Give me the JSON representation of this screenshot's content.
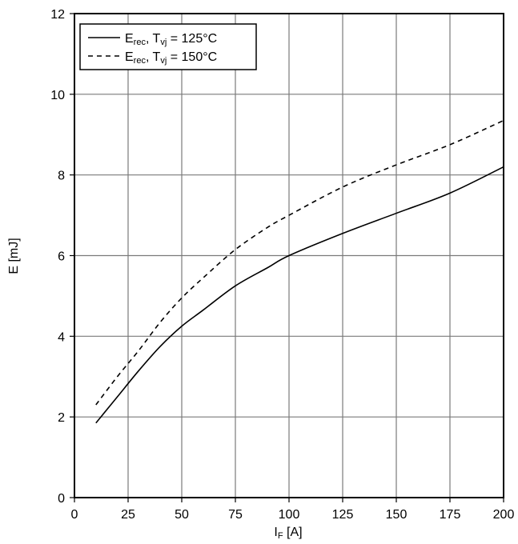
{
  "chart_data": {
    "type": "line",
    "xlabel_main": "I",
    "xlabel_sub": "F",
    "xlabel_unit": " [A]",
    "ylabel": "E [mJ]",
    "xlim": [
      0,
      200
    ],
    "ylim": [
      0,
      12
    ],
    "xticks": [
      0,
      25,
      50,
      75,
      100,
      125,
      150,
      175,
      200
    ],
    "yticks": [
      0,
      2,
      4,
      6,
      8,
      10,
      12
    ],
    "grid": true,
    "legend_position": "top-left",
    "series": [
      {
        "legend_main": "E",
        "legend_sub": "rec",
        "legend_mid": ", T",
        "legend_sub2": "vj",
        "legend_tail": " = 125°C",
        "style": "solid",
        "x": [
          10,
          20,
          30,
          40,
          50,
          60,
          75,
          90,
          100,
          125,
          150,
          175,
          200
        ],
        "y": [
          1.85,
          2.5,
          3.15,
          3.75,
          4.25,
          4.65,
          5.25,
          5.7,
          6.0,
          6.55,
          7.05,
          7.55,
          8.2
        ]
      },
      {
        "legend_main": "E",
        "legend_sub": "rec",
        "legend_mid": ", T",
        "legend_sub2": "vj",
        "legend_tail": " = 150°C",
        "style": "dashed",
        "x": [
          10,
          20,
          30,
          40,
          50,
          60,
          75,
          90,
          100,
          125,
          150,
          175,
          200
        ],
        "y": [
          2.3,
          3.0,
          3.65,
          4.35,
          4.95,
          5.45,
          6.15,
          6.7,
          7.0,
          7.7,
          8.25,
          8.75,
          9.35
        ]
      }
    ]
  }
}
